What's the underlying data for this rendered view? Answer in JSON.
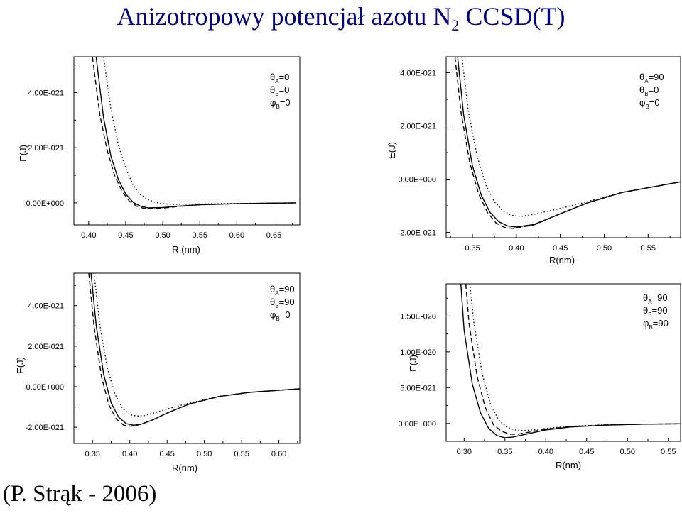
{
  "title": {
    "main": "Anizotropowy potencjał azotu N",
    "subscript": "2",
    "tail": " CCSD(T)"
  },
  "credit": "(P. Strąk - 2006)",
  "colors": {
    "title": "#00008b",
    "axes": "#000000",
    "curves": "#000000"
  },
  "chart_data": [
    {
      "type": "line",
      "xlabel": "R (nm)",
      "ylabel": "E(J)",
      "xlim": [
        0.38,
        0.685
      ],
      "ylim": [
        -8e-22,
        5.3e-21
      ],
      "xticks": [
        0.4,
        0.45,
        0.5,
        0.55,
        0.6,
        0.65
      ],
      "xtick_labels": [
        "0.40",
        "0.45",
        "0.50",
        "0.55",
        "0.60",
        "0.65"
      ],
      "yticks": [
        0,
        2e-21,
        4e-21
      ],
      "ytick_labels": [
        "0.00E+000",
        "2.00E-021",
        "4.00E-021"
      ],
      "legend": [
        "θA=0",
        "θB=0",
        "φB=0"
      ],
      "legend_position": "top-right",
      "series": [
        {
          "style": "solid",
          "x": [
            0.41,
            0.42,
            0.43,
            0.44,
            0.45,
            0.46,
            0.47,
            0.48,
            0.5,
            0.52,
            0.55,
            0.6,
            0.65,
            0.68
          ],
          "values": [
            5.3e-21,
            3.1e-21,
            1.7e-21,
            8.5e-22,
            3.2e-22,
            2e-23,
            -1.2e-22,
            -1.8e-22,
            -1.7e-22,
            -1.2e-22,
            -7e-23,
            -3e-23,
            -1e-23,
            0.0
          ]
        },
        {
          "style": "dashed",
          "x": [
            0.405,
            0.415,
            0.425,
            0.435,
            0.445,
            0.455,
            0.465,
            0.475,
            0.485,
            0.5,
            0.52,
            0.55,
            0.6,
            0.65,
            0.68
          ],
          "values": [
            5.3e-21,
            3.2e-21,
            1.9e-21,
            1e-21,
            4.2e-22,
            6e-23,
            -1.2e-22,
            -2e-22,
            -2.1e-22,
            -1.9e-22,
            -1.3e-22,
            -7e-23,
            -3e-23,
            -1e-23,
            0.0
          ]
        },
        {
          "style": "dotted",
          "x": [
            0.42,
            0.43,
            0.44,
            0.45,
            0.46,
            0.47,
            0.48,
            0.49,
            0.5,
            0.51,
            0.52,
            0.55,
            0.6,
            0.65,
            0.68
          ],
          "values": [
            5.3e-21,
            3.4e-21,
            2.1e-21,
            1.25e-21,
            6.5e-22,
            3e-22,
            1.2e-22,
            2e-23,
            -3e-23,
            -5e-23,
            -5e-23,
            -4e-23,
            -2e-23,
            -1e-23,
            0.0
          ]
        }
      ]
    },
    {
      "type": "line",
      "xlabel": "R(nm)",
      "ylabel": "E(J)",
      "xlim": [
        0.32,
        0.587
      ],
      "ylim": [
        -2.2e-21,
        4.6e-21
      ],
      "xticks": [
        0.35,
        0.4,
        0.45,
        0.5,
        0.55
      ],
      "xtick_labels": [
        "0.35",
        "0.40",
        "0.45",
        "0.50",
        "0.55"
      ],
      "yticks": [
        -2e-21,
        0,
        2e-21,
        4e-21
      ],
      "ytick_labels": [
        "-2.00E-021",
        "0.00E+000",
        "2.00E-021",
        "4.00E-021"
      ],
      "legend": [
        "θA=90",
        "θB=0",
        "φB=0"
      ],
      "legend_position": "top-right",
      "series": [
        {
          "style": "solid",
          "x": [
            0.333,
            0.34,
            0.35,
            0.36,
            0.37,
            0.38,
            0.39,
            0.4,
            0.42,
            0.45,
            0.48,
            0.52,
            0.587
          ],
          "values": [
            4.6e-21,
            2.4e-21,
            5e-22,
            -6e-22,
            -1.25e-21,
            -1.6e-21,
            -1.76e-21,
            -1.8e-21,
            -1.7e-21,
            -1.3e-21,
            -9e-22,
            -5e-22,
            -1e-22
          ]
        },
        {
          "style": "dashed",
          "x": [
            0.33,
            0.337,
            0.347,
            0.357,
            0.367,
            0.377,
            0.387,
            0.397,
            0.42,
            0.45,
            0.48,
            0.52,
            0.587
          ],
          "values": [
            4.6e-21,
            2.5e-21,
            6e-22,
            -5.5e-22,
            -1.25e-21,
            -1.65e-21,
            -1.82e-21,
            -1.85e-21,
            -1.72e-21,
            -1.3e-21,
            -9e-22,
            -5e-22,
            -1e-22
          ]
        },
        {
          "style": "dotted",
          "x": [
            0.338,
            0.345,
            0.355,
            0.365,
            0.375,
            0.385,
            0.395,
            0.405,
            0.42,
            0.45,
            0.48,
            0.52,
            0.587
          ],
          "values": [
            4.6e-21,
            2.6e-21,
            9e-22,
            -2e-22,
            -8.5e-22,
            -1.2e-21,
            -1.36e-21,
            -1.4e-21,
            -1.32e-21,
            -1.1e-21,
            -8.5e-22,
            -5e-22,
            -1e-22
          ]
        }
      ]
    },
    {
      "type": "line",
      "xlabel": "R(nm)",
      "ylabel": "E(J)",
      "xlim": [
        0.325,
        0.628
      ],
      "ylim": [
        -2.8e-21,
        5.6e-21
      ],
      "xticks": [
        0.35,
        0.4,
        0.45,
        0.5,
        0.55,
        0.6
      ],
      "xtick_labels": [
        "0.35",
        "0.40",
        "0.45",
        "0.50",
        "0.55",
        "0.60"
      ],
      "yticks": [
        -2e-21,
        0,
        2e-21,
        4e-21
      ],
      "ytick_labels": [
        "-2.00E-021",
        "0.00E+000",
        "2.00E-021",
        "4.00E-021"
      ],
      "legend": [
        "θA=90",
        "θB=90",
        "φB=0"
      ],
      "legend_position": "top-right",
      "series": [
        {
          "style": "solid",
          "x": [
            0.348,
            0.355,
            0.365,
            0.375,
            0.385,
            0.395,
            0.405,
            0.415,
            0.43,
            0.45,
            0.48,
            0.52,
            0.56,
            0.628
          ],
          "values": [
            5.6e-21,
            3e-21,
            6e-22,
            -8e-22,
            -1.5e-21,
            -1.82e-21,
            -1.9e-21,
            -1.85e-21,
            -1.65e-21,
            -1.3e-21,
            -8.5e-22,
            -4.8e-22,
            -2.8e-22,
            -1e-22
          ]
        },
        {
          "style": "dashed",
          "x": [
            0.345,
            0.352,
            0.362,
            0.372,
            0.382,
            0.392,
            0.402,
            0.412,
            0.43,
            0.45,
            0.48,
            0.52,
            0.56,
            0.628
          ],
          "values": [
            5.6e-21,
            3e-21,
            5e-22,
            -9e-22,
            -1.6e-21,
            -1.9e-21,
            -1.95e-21,
            -1.88e-21,
            -1.65e-21,
            -1.3e-21,
            -8.5e-22,
            -4.8e-22,
            -2.8e-22,
            -1e-22
          ]
        },
        {
          "style": "dotted",
          "x": [
            0.352,
            0.36,
            0.37,
            0.38,
            0.39,
            0.4,
            0.41,
            0.42,
            0.43,
            0.45,
            0.48,
            0.52,
            0.56,
            0.628
          ],
          "values": [
            5.6e-21,
            3e-21,
            9e-22,
            -3.5e-22,
            -1.05e-21,
            -1.38e-21,
            -1.45e-21,
            -1.42e-21,
            -1.32e-21,
            -1.1e-21,
            -8e-22,
            -4.8e-22,
            -2.8e-22,
            -1e-22
          ]
        }
      ]
    },
    {
      "type": "line",
      "xlabel": "R(nm)",
      "ylabel": "E(J)",
      "xlim": [
        0.278,
        0.565
      ],
      "ylim": [
        -2.5e-21,
        1.95e-20
      ],
      "xticks": [
        0.3,
        0.35,
        0.4,
        0.45,
        0.5,
        0.55
      ],
      "xtick_labels": [
        "0.30",
        "0.35",
        "0.40",
        "0.45",
        "0.50",
        "0.55"
      ],
      "yticks": [
        0,
        5e-21,
        1e-20,
        1.5e-20
      ],
      "ytick_labels": [
        "0.00E+000",
        "5.00E-021",
        "1.00E-020",
        "1.50E-020"
      ],
      "legend": [
        "θA=90",
        "θB=90",
        "φB=90"
      ],
      "legend_position": "top-right",
      "series": [
        {
          "style": "solid",
          "x": [
            0.296,
            0.3,
            0.31,
            0.32,
            0.33,
            0.34,
            0.35,
            0.36,
            0.38,
            0.4,
            0.43,
            0.47,
            0.52,
            0.565
          ],
          "values": [
            1.95e-20,
            1.3e-20,
            5.5e-21,
            1.5e-21,
            -7e-22,
            -1.7e-21,
            -2e-21,
            -1.9e-21,
            -1.4e-21,
            -9e-22,
            -5e-22,
            -2.5e-22,
            -1e-22,
            -5e-23
          ]
        },
        {
          "style": "dashed",
          "x": [
            0.302,
            0.306,
            0.316,
            0.326,
            0.336,
            0.346,
            0.356,
            0.366,
            0.38,
            0.4,
            0.43,
            0.47,
            0.52,
            0.565
          ],
          "values": [
            1.95e-20,
            1.4e-20,
            6.5e-21,
            2.2e-21,
            -2e-22,
            -1.1e-21,
            -1.5e-21,
            -1.5e-21,
            -1.2e-21,
            -8e-22,
            -4.5e-22,
            -2.2e-22,
            -1e-22,
            -5e-23
          ]
        },
        {
          "style": "dotted",
          "x": [
            0.307,
            0.312,
            0.322,
            0.332,
            0.342,
            0.352,
            0.362,
            0.372,
            0.385,
            0.4,
            0.43,
            0.47,
            0.52,
            0.565
          ],
          "values": [
            1.95e-20,
            1.4e-20,
            7e-21,
            2.8e-21,
            5e-22,
            -5e-22,
            -9e-22,
            -1e-21,
            -9e-22,
            -7e-22,
            -4e-22,
            -2e-22,
            -1e-22,
            -5e-23
          ]
        }
      ]
    }
  ]
}
